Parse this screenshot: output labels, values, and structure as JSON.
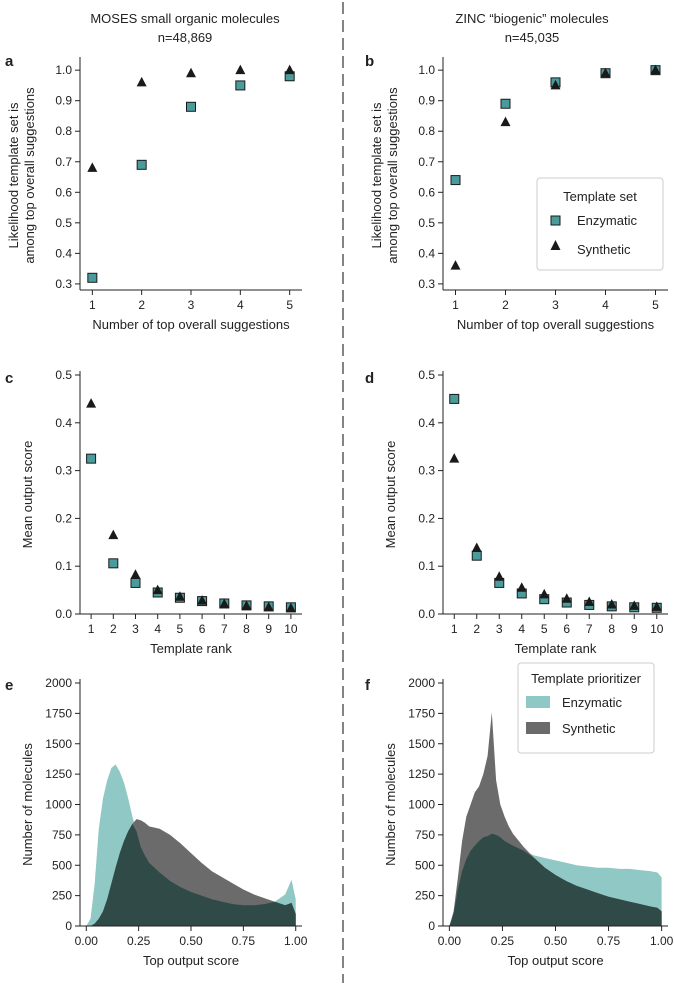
{
  "figure": {
    "left_title": "MOSES small organic molecules",
    "left_n": "n=48,869",
    "right_title": "ZINC “biogenic” molecules",
    "right_n": "n=45,035"
  },
  "colors": {
    "enzymatic_marker": "#4a9c9c",
    "enzymatic_fill": "#8fc8c5",
    "synthetic_fill": "#6b6b6b",
    "overlap_fill": "#2f4a47",
    "synthetic_marker": "#1a1a1a"
  },
  "chart_data": [
    {
      "panel": "a",
      "type": "scatter",
      "xlabel": "Number of top overall suggestions",
      "ylabel": [
        "Likelihood template set is",
        "among top overall suggestions"
      ],
      "xlim": [
        0.75,
        5.25
      ],
      "ylim": [
        0.28,
        1.03
      ],
      "xticks": [
        1,
        2,
        3,
        4,
        5
      ],
      "yticks": [
        0.3,
        0.4,
        0.5,
        0.6,
        0.7,
        0.8,
        0.9,
        1.0
      ],
      "series": [
        {
          "name": "Enzymatic",
          "marker": "square",
          "x": [
            1,
            2,
            3,
            4,
            5
          ],
          "values": [
            0.32,
            0.69,
            0.88,
            0.95,
            0.98
          ]
        },
        {
          "name": "Synthetic",
          "marker": "triangle",
          "x": [
            1,
            2,
            3,
            4,
            5
          ],
          "values": [
            0.68,
            0.96,
            0.99,
            1.0,
            1.0
          ]
        }
      ]
    },
    {
      "panel": "b",
      "type": "scatter",
      "xlabel": "Number of top overall suggestions",
      "ylabel": [
        "Likelihood template set is",
        "among top overall suggestions"
      ],
      "xlim": [
        0.75,
        5.25
      ],
      "ylim": [
        0.28,
        1.03
      ],
      "xticks": [
        1,
        2,
        3,
        4,
        5
      ],
      "yticks": [
        0.3,
        0.4,
        0.5,
        0.6,
        0.7,
        0.8,
        0.9,
        1.0
      ],
      "legend": {
        "title": "Template set",
        "placement": "center-right",
        "entries": [
          "Enzymatic",
          "Synthetic"
        ]
      },
      "series": [
        {
          "name": "Enzymatic",
          "marker": "square",
          "x": [
            1,
            2,
            3,
            4,
            5
          ],
          "values": [
            0.64,
            0.89,
            0.96,
            0.99,
            1.0
          ]
        },
        {
          "name": "Synthetic",
          "marker": "triangle",
          "x": [
            1,
            2,
            3,
            4,
            5
          ],
          "values": [
            0.36,
            0.83,
            0.95,
            0.99,
            1.0
          ]
        }
      ]
    },
    {
      "panel": "c",
      "type": "scatter",
      "xlabel": "Template rank",
      "ylabel": [
        "Mean output score"
      ],
      "xlim": [
        0.5,
        10.5
      ],
      "ylim": [
        0,
        0.5
      ],
      "xticks": [
        1,
        2,
        3,
        4,
        5,
        6,
        7,
        8,
        9,
        10
      ],
      "yticks": [
        0.0,
        0.1,
        0.2,
        0.3,
        0.4,
        0.5
      ],
      "series": [
        {
          "name": "Enzymatic",
          "marker": "square",
          "x": [
            1,
            2,
            3,
            4,
            5,
            6,
            7,
            8,
            9,
            10
          ],
          "values": [
            0.325,
            0.106,
            0.065,
            0.045,
            0.034,
            0.027,
            0.022,
            0.018,
            0.016,
            0.014
          ]
        },
        {
          "name": "Synthetic",
          "marker": "triangle",
          "x": [
            1,
            2,
            3,
            4,
            5,
            6,
            7,
            8,
            9,
            10
          ],
          "values": [
            0.44,
            0.165,
            0.082,
            0.05,
            0.036,
            0.028,
            0.021,
            0.017,
            0.014,
            0.012
          ]
        }
      ]
    },
    {
      "panel": "d",
      "type": "scatter",
      "xlabel": "Template rank",
      "ylabel": [
        "Mean output score"
      ],
      "xlim": [
        0.5,
        10.5
      ],
      "ylim": [
        0,
        0.5
      ],
      "xticks": [
        1,
        2,
        3,
        4,
        5,
        6,
        7,
        8,
        9,
        10
      ],
      "yticks": [
        0.0,
        0.1,
        0.2,
        0.3,
        0.4,
        0.5
      ],
      "series": [
        {
          "name": "Enzymatic",
          "marker": "square",
          "x": [
            1,
            2,
            3,
            4,
            5,
            6,
            7,
            8,
            9,
            10
          ],
          "values": [
            0.45,
            0.122,
            0.065,
            0.043,
            0.031,
            0.024,
            0.019,
            0.016,
            0.014,
            0.013
          ]
        },
        {
          "name": "Synthetic",
          "marker": "triangle",
          "x": [
            1,
            2,
            3,
            4,
            5,
            6,
            7,
            8,
            9,
            10
          ],
          "values": [
            0.325,
            0.138,
            0.078,
            0.055,
            0.041,
            0.032,
            0.025,
            0.02,
            0.017,
            0.015
          ]
        }
      ]
    },
    {
      "panel": "e",
      "type": "area",
      "xlabel": "Top output score",
      "ylabel": [
        "Number of molecules"
      ],
      "xlim": [
        -0.03,
        1.03
      ],
      "ylim": [
        0,
        2000
      ],
      "xticks": [
        0.0,
        0.25,
        0.5,
        0.75,
        1.0
      ],
      "xticklabels": [
        "0.00",
        "0.25",
        "0.50",
        "0.75",
        "1.00"
      ],
      "yticks": [
        0,
        250,
        500,
        750,
        1000,
        1250,
        1500,
        1750,
        2000
      ],
      "x": [
        0.0,
        0.02,
        0.04,
        0.06,
        0.08,
        0.1,
        0.12,
        0.14,
        0.16,
        0.18,
        0.2,
        0.22,
        0.24,
        0.26,
        0.28,
        0.3,
        0.35,
        0.4,
        0.45,
        0.5,
        0.55,
        0.6,
        0.65,
        0.7,
        0.75,
        0.8,
        0.85,
        0.9,
        0.95,
        0.98,
        1.0
      ],
      "series": [
        {
          "name": "Enzymatic",
          "values": [
            0,
            60,
            350,
            800,
            1050,
            1200,
            1300,
            1330,
            1270,
            1180,
            1050,
            900,
            780,
            650,
            580,
            520,
            440,
            370,
            320,
            280,
            250,
            220,
            200,
            180,
            170,
            170,
            180,
            200,
            260,
            380,
            220
          ]
        },
        {
          "name": "Synthetic",
          "values": [
            0,
            0,
            20,
            60,
            120,
            220,
            350,
            480,
            600,
            700,
            780,
            840,
            880,
            870,
            850,
            820,
            800,
            750,
            680,
            600,
            520,
            450,
            400,
            350,
            300,
            260,
            230,
            200,
            170,
            190,
            100
          ]
        }
      ]
    },
    {
      "panel": "f",
      "type": "area",
      "xlabel": "Top output score",
      "ylabel": [
        "Number of molecules"
      ],
      "xlim": [
        -0.03,
        1.03
      ],
      "ylim": [
        0,
        2000
      ],
      "xticks": [
        0.0,
        0.25,
        0.5,
        0.75,
        1.0
      ],
      "xticklabels": [
        "0.00",
        "0.25",
        "0.50",
        "0.75",
        "1.00"
      ],
      "yticks": [
        0,
        250,
        500,
        750,
        1000,
        1250,
        1500,
        1750,
        2000
      ],
      "legend": {
        "title": "Template prioritizer",
        "placement": "top-right",
        "entries": [
          "Enzymatic",
          "Synthetic"
        ]
      },
      "x": [
        0.0,
        0.02,
        0.04,
        0.06,
        0.08,
        0.1,
        0.12,
        0.14,
        0.16,
        0.18,
        0.2,
        0.22,
        0.24,
        0.26,
        0.28,
        0.3,
        0.35,
        0.4,
        0.45,
        0.5,
        0.55,
        0.6,
        0.65,
        0.7,
        0.75,
        0.8,
        0.85,
        0.9,
        0.95,
        0.98,
        1.0
      ],
      "series": [
        {
          "name": "Enzymatic",
          "values": [
            0,
            100,
            300,
            450,
            550,
            620,
            660,
            700,
            730,
            740,
            760,
            750,
            730,
            700,
            680,
            660,
            620,
            580,
            560,
            540,
            520,
            500,
            490,
            480,
            480,
            470,
            470,
            460,
            450,
            440,
            400
          ]
        },
        {
          "name": "Synthetic",
          "values": [
            0,
            120,
            400,
            700,
            900,
            1000,
            1100,
            1150,
            1250,
            1400,
            1760,
            1200,
            1000,
            900,
            820,
            760,
            650,
            560,
            480,
            420,
            370,
            330,
            300,
            270,
            240,
            220,
            200,
            180,
            160,
            150,
            120
          ]
        }
      ]
    }
  ]
}
